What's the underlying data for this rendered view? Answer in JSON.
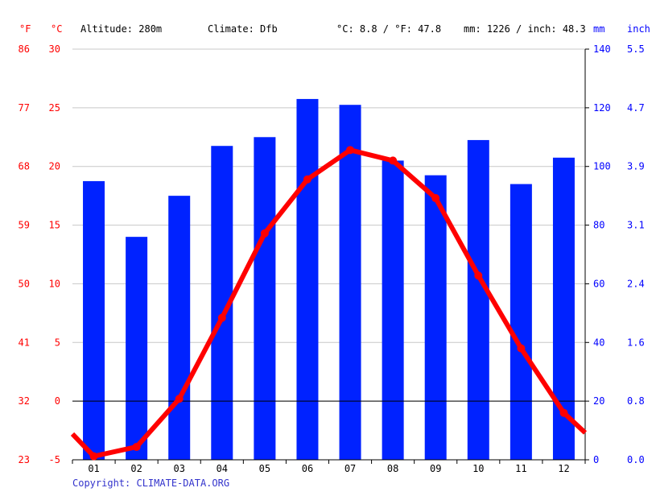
{
  "header": {
    "f_unit": "°F",
    "c_unit": "°C",
    "altitude": "Altitude: 280m",
    "climate": "Climate: Dfb",
    "temp_avg": "°C: 8.8 / °F: 47.8",
    "precip_total": "mm: 1226 / inch: 48.3",
    "mm_unit": "mm",
    "inch_unit": "inch"
  },
  "footer": {
    "copyright": "Copyright: CLIMATE-DATA.ORG"
  },
  "colors": {
    "precip_bar": "#0022ff",
    "temp_line": "#ff0000",
    "temp_axis": "#ff0000",
    "precip_axis": "#0000ff"
  },
  "chart_data": {
    "type": "bar",
    "categories": [
      "01",
      "02",
      "03",
      "04",
      "05",
      "06",
      "07",
      "08",
      "09",
      "10",
      "11",
      "12"
    ],
    "series": [
      {
        "axis": "right",
        "type": "bar",
        "values": [
          95,
          76,
          90,
          107,
          110,
          123,
          121,
          102,
          97,
          109,
          94,
          103
        ]
      },
      {
        "axis": "left",
        "type": "line",
        "values": [
          -4.7,
          -3.9,
          0.2,
          7.1,
          14.3,
          18.9,
          21.4,
          20.5,
          17.3,
          10.7,
          4.5,
          -1.0
        ]
      }
    ],
    "temp_line_edges": {
      "start": -2.8,
      "end": -2.7
    },
    "left_axis_c": {
      "ticks": [
        30,
        25,
        20,
        15,
        10,
        5,
        0,
        -5
      ],
      "ylim": [
        -5,
        30
      ]
    },
    "left_axis_f": {
      "ticks": [
        86,
        77,
        68,
        59,
        50,
        41,
        32,
        23
      ]
    },
    "right_axis_mm": {
      "ticks": [
        140,
        120,
        100,
        80,
        60,
        40,
        20,
        0
      ],
      "ylim": [
        0,
        140
      ]
    },
    "right_axis_inch": {
      "ticks": [
        "5.5",
        "4.7",
        "3.9",
        "3.1",
        "2.4",
        "1.6",
        "0.8",
        "0.0"
      ]
    },
    "grid": true
  }
}
